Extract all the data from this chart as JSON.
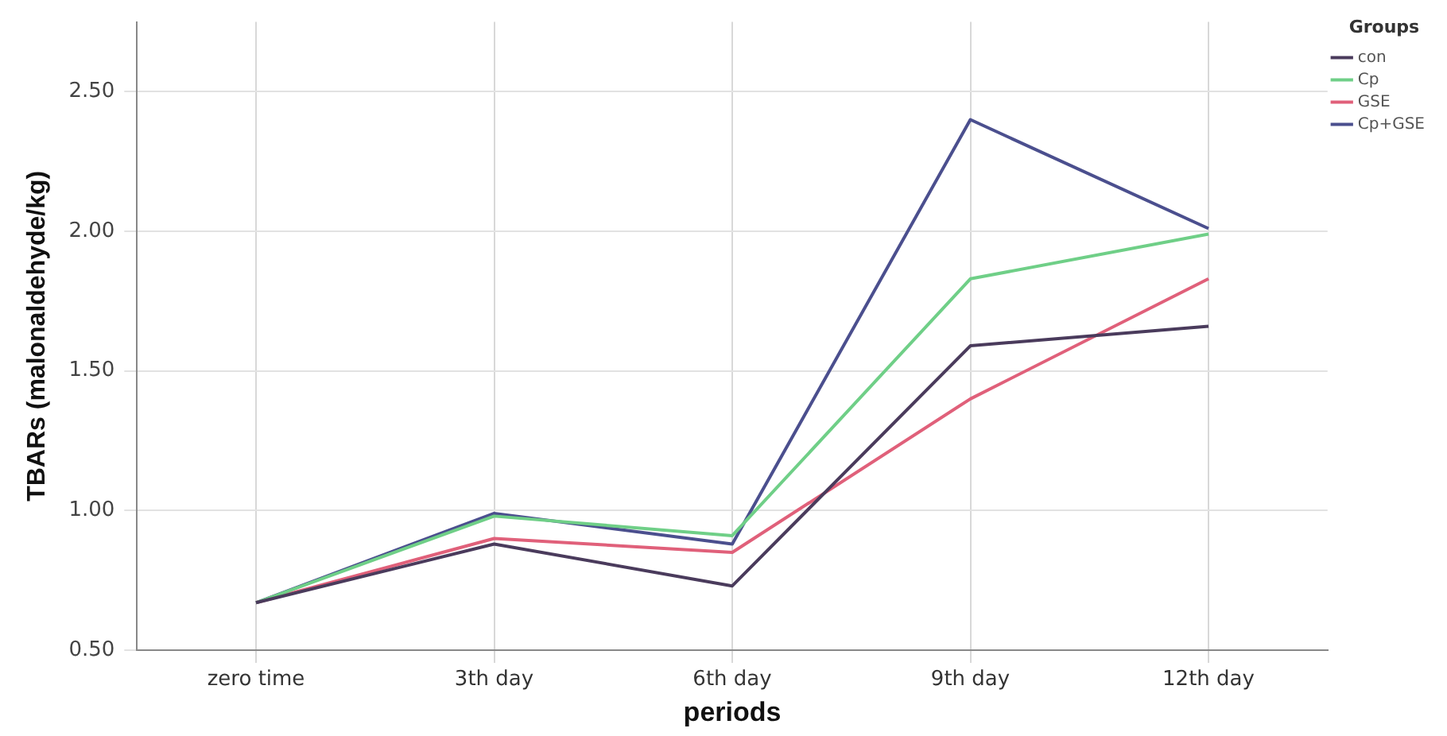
{
  "chart_data": {
    "type": "line",
    "xlabel": "periods",
    "ylabel": "TBARs (malonaldehyde/kg)",
    "legend_title": "Groups",
    "legend": "top right",
    "categories": [
      "zero time",
      "3th day",
      "6th day",
      "9th day",
      "12th day"
    ],
    "series": [
      {
        "name": "con",
        "color": "#4a3b5c",
        "values": [
          0.67,
          0.88,
          0.73,
          1.59,
          1.66
        ]
      },
      {
        "name": "Cp",
        "color": "#6fcf87",
        "values": [
          0.67,
          0.98,
          0.91,
          1.83,
          1.99
        ]
      },
      {
        "name": "GSE",
        "color": "#e0607a",
        "values": [
          0.67,
          0.9,
          0.85,
          1.4,
          1.83
        ]
      },
      {
        "name": "Cp+GSE",
        "color": "#4b4f8e",
        "values": [
          0.67,
          0.99,
          0.88,
          2.4,
          2.01
        ]
      }
    ],
    "ylim": [
      0.5,
      2.75
    ],
    "yticks": [
      {
        "value": 0.5,
        "label": "0.50"
      },
      {
        "value": 1,
        "label": "1.00"
      },
      {
        "value": 1.5,
        "label": "1.50"
      },
      {
        "value": 2,
        "label": "2.00"
      },
      {
        "value": 2.5,
        "label": "2.50"
      }
    ],
    "grid": true,
    "marker": "none",
    "line_style": "solid"
  }
}
